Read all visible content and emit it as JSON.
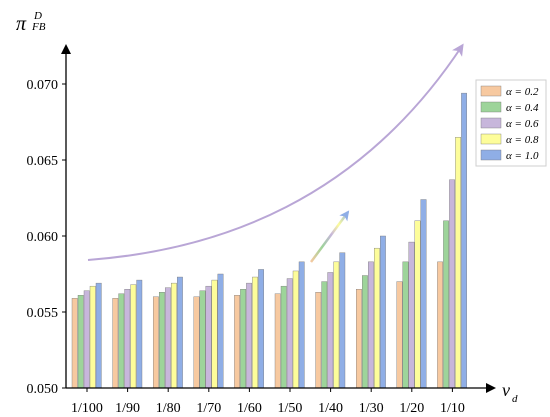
{
  "chart_data": {
    "type": "bar",
    "title": "",
    "ylabel_base": "π",
    "ylabel_sup": "D",
    "ylabel_sub": "FB",
    "xlabel_base": "v",
    "xlabel_sub": "d",
    "categories": [
      "1/100",
      "1/90",
      "1/80",
      "1/70",
      "1/60",
      "1/50",
      "1/40",
      "1/30",
      "1/20",
      "1/10"
    ],
    "ylim": [
      0.05,
      0.0725
    ],
    "yticks": [
      "0.050",
      "0.055",
      "0.060",
      "0.065",
      "0.070"
    ],
    "ytick_values": [
      0.05,
      0.055,
      0.06,
      0.065,
      0.07
    ],
    "legend_position": "top-right",
    "series": [
      {
        "name": "α = 0.2",
        "color": "#F7C9A0",
        "values": [
          0.0559,
          0.0559,
          0.056,
          0.056,
          0.0561,
          0.0562,
          0.0563,
          0.0565,
          0.057,
          0.0583
        ]
      },
      {
        "name": "α = 0.4",
        "color": "#9DD49A",
        "values": [
          0.0561,
          0.0562,
          0.0563,
          0.0564,
          0.0565,
          0.0567,
          0.057,
          0.0574,
          0.0583,
          0.061
        ]
      },
      {
        "name": "α = 0.6",
        "color": "#C7B6DB",
        "values": [
          0.0564,
          0.0565,
          0.0566,
          0.0567,
          0.0569,
          0.0572,
          0.0576,
          0.0583,
          0.0596,
          0.0637
        ]
      },
      {
        "name": "α = 0.8",
        "color": "#FDFD9A",
        "values": [
          0.0567,
          0.0568,
          0.0569,
          0.0571,
          0.0573,
          0.0577,
          0.0583,
          0.0592,
          0.061,
          0.0665
        ]
      },
      {
        "name": "α = 1.0",
        "color": "#8FAEE6",
        "values": [
          0.0569,
          0.0571,
          0.0573,
          0.0575,
          0.0578,
          0.0583,
          0.0589,
          0.06,
          0.0624,
          0.0694
        ]
      }
    ],
    "annotations": [
      "increasing-trend-arrow",
      "legend-arrow"
    ]
  }
}
